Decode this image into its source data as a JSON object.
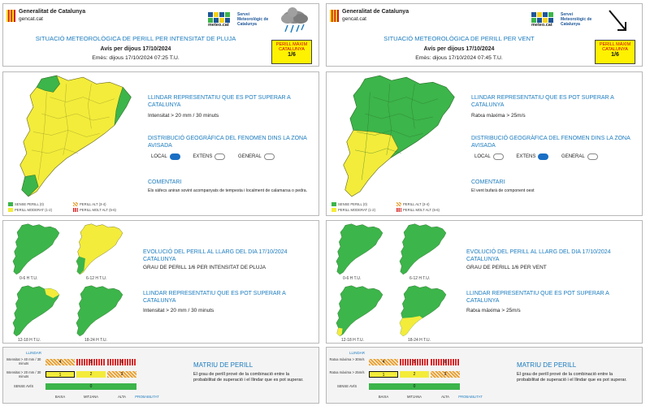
{
  "left": {
    "header": {
      "org_line1": "Generalitat de Catalunya",
      "org_line2": "gencat.cat",
      "meteo_name": "meteo.cat",
      "meteo_service": "Servei Meteorològic de Catalunya",
      "weather_icon": "rain-cloud-icon",
      "title": "SITUACIÓ METEOROLÒGICA DE PERILL PER INTENSITAT DE PLUJA",
      "notice": "Avís per dijous 17/10/2024",
      "issued": "Emès: dijous 17/10/2024 07:25 T.U.",
      "max_label": "PERILL MÀXIM CATALUNYA",
      "max_value": "1/6"
    },
    "threshold_heading": "LLINDAR REPRESENTATIU QUE ES POT SUPERAR A CATALUNYA",
    "threshold_value": "Intensitat > 20 mm / 30 minuts",
    "distribution_heading": "DISTRIBUCIÓ GEOGRÀFICA DEL FENOMEN DINS LA ZONA AVISADA",
    "distribution_options": [
      {
        "label": "LOCAL",
        "active": true
      },
      {
        "label": "EXTENS",
        "active": false
      },
      {
        "label": "GENERAL",
        "active": false
      }
    ],
    "comment_heading": "COMENTARI",
    "comment_text": "Els xàfecs aniran sovint acompanyats de tempesta i localment de calamarsa o pedra.",
    "legend": [
      "SENSE PERILL (0)",
      "PERILL MODERAT (1-2)",
      "PERILL ALT (3-4)",
      "PERILL MOLT ALT (5-6)"
    ],
    "evolution_heading": "EVOLUCIÓ DEL PERILL AL LLARG DEL DIA 17/10/2024 CATALUNYA",
    "evolution_value": "GRAU DE PERILL 1/6 PER INTENSITAT DE PLUJA",
    "threshold2_heading": "LLINDAR REPRESENTATIU QUE ES POT SUPERAR A CATALUNYA",
    "threshold2_value": "Intensitat > 20 mm / 30 minuts",
    "period_labels": [
      "0-6 H T.U.",
      "6-12 H T.U.",
      "12-18 H T.U.",
      "18-24 H T.U."
    ],
    "matrix": {
      "axis_label": "LLINDAR",
      "row_labels": [
        "Intensitat > 40 mm / 30 minuts",
        "Intensitat > 20 mm / 30 minuts",
        "SENSE AVÍS"
      ],
      "col_labels": [
        "BAIXA",
        "MITJANA",
        "ALTA",
        "PROBABILITAT"
      ],
      "row_top": [
        "4",
        "5",
        "6"
      ],
      "row_mid": [
        "1",
        "2",
        "3"
      ],
      "row_zero": "0"
    },
    "matrix_title": "MATRIU DE PERILL",
    "matrix_text": "El grau de perill prové de la combinació entre la probabilitat de superació i el llindar que es pot superar."
  },
  "right": {
    "header": {
      "org_line1": "Generalitat de Catalunya",
      "org_line2": "gencat.cat",
      "meteo_name": "meteo.cat",
      "meteo_service": "Servei Meteorològic de Catalunya",
      "weather_icon": "wind-arrow-icon",
      "title": "SITUACIÓ METEOROLÒGICA DE PERILL PER VENT",
      "notice": "Avís per dijous 17/10/2024",
      "issued": "Emès: dijous 17/10/2024 07:45 T.U.",
      "max_label": "PERILL MÀXIM CATALUNYA",
      "max_value": "1/6"
    },
    "threshold_heading": "LLINDAR REPRESENTATIU QUE ES POT SUPERAR A CATALUNYA",
    "threshold_value": "Ratxa màxima > 25m/s",
    "distribution_heading": "DISTRIBUCIÓ GEOGRÀFICA DEL FENOMEN DINS LA ZONA AVISADA",
    "distribution_options": [
      {
        "label": "LOCAL",
        "active": false
      },
      {
        "label": "EXTENS",
        "active": true
      },
      {
        "label": "GENERAL",
        "active": false
      }
    ],
    "comment_heading": "COMENTARI",
    "comment_text": "El vent bufarà de component oest",
    "legend": [
      "SENSE PERILL (0)",
      "PERILL MODERAT (1-2)",
      "PERILL ALT (3-4)",
      "PERILL MOLT ALT (5-6)"
    ],
    "evolution_heading": "EVOLUCIÓ DEL PERILL AL LLARG DEL DIA 17/10/2024 CATALUNYA",
    "evolution_value": "GRAU DE PERILL 1/6 PER VENT",
    "threshold2_heading": "LLINDAR REPRESENTATIU QUE ES POT SUPERAR A CATALUNYA",
    "threshold2_value": "Ratxa màxima > 25m/s",
    "period_labels": [
      "0-6 H T.U.",
      "6-12 H T.U.",
      "12-18 H T.U.",
      "18-24 H T.U."
    ],
    "matrix": {
      "axis_label": "LLINDAR",
      "row_labels": [
        "Ratxa màxima > 30m/s",
        "Ratxa màxima > 25m/s",
        "SENSE AVÍS"
      ],
      "col_labels": [
        "BAIXA",
        "MITJANA",
        "ALTA",
        "PROBABILITAT"
      ],
      "row_top": [
        "4",
        "5",
        "6"
      ],
      "row_mid": [
        "1",
        "2",
        "3"
      ],
      "row_zero": "0"
    },
    "matrix_title": "MATRIU DE PERILL",
    "matrix_text": "El grau de perill prové de la combinació entre la probabilitat de superació i el llindar que es pot superar."
  },
  "colors": {
    "green": "#3cb54a",
    "yellow": "#f3ec3a",
    "orange": "#e8a33a",
    "red": "#d62728",
    "blue": "#1a7bbf"
  }
}
